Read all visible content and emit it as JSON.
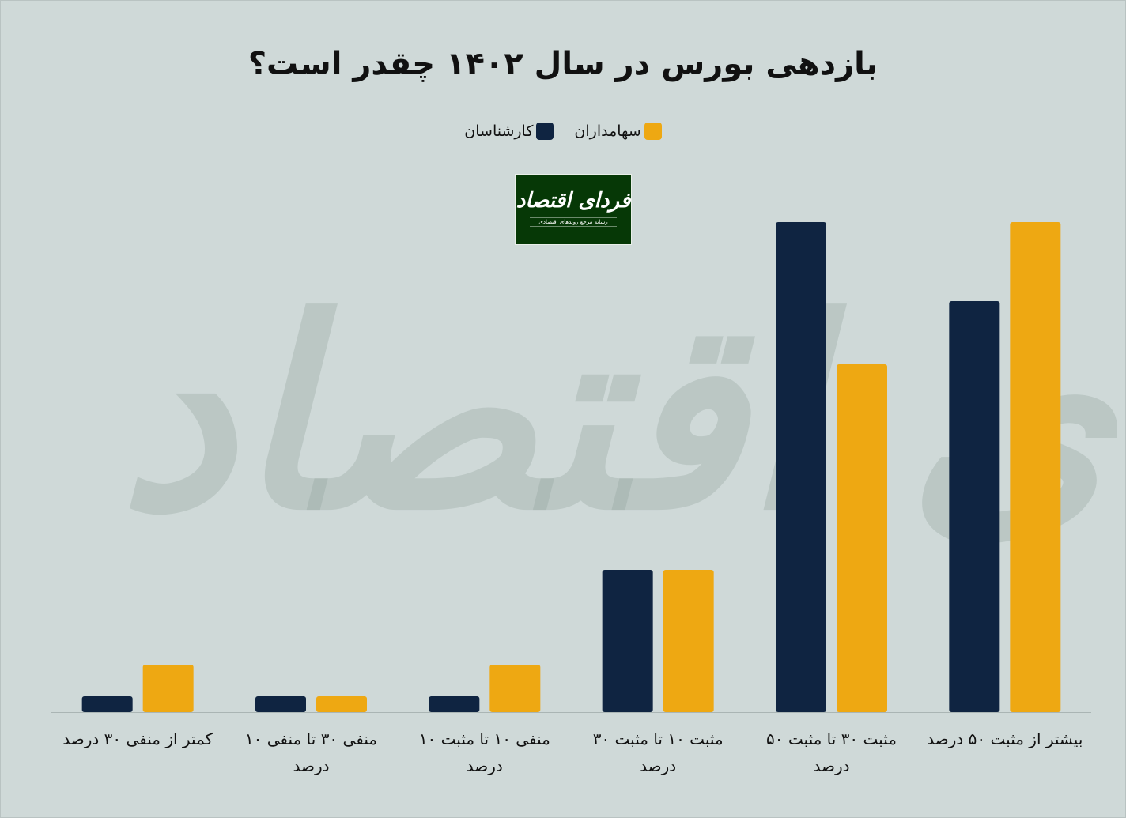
{
  "title": "بازدهی بورس در سال ۱۴۰۲ چقدر است؟",
  "logo": {
    "name": "فردای اقتصاد",
    "tagline": "رسانه مرجع روندهای اقتصادی"
  },
  "colors": {
    "background": "#cfd9d8",
    "experts": "#0f2441",
    "shareholders": "#eea812"
  },
  "chart_data": {
    "type": "bar",
    "title": "بازدهی بورس در سال ۱۴۰۲ چقدر است؟",
    "categories": [
      "کمتر از منفی ۳۰ درصد",
      "منفی ۳۰ تا منفی ۱۰ درصد",
      "منفی ۱۰ تا مثبت ۱۰ درصد",
      "مثبت ۱۰ تا مثبت ۳۰ درصد",
      "مثبت ۳۰ تا مثبت ۵۰ درصد",
      "بیشتر از مثبت ۵۰ درصد"
    ],
    "series": [
      {
        "name": "کارشناسان",
        "color": "#0f2441",
        "values": [
          1,
          1,
          1,
          9,
          31,
          26
        ]
      },
      {
        "name": "سهامداران",
        "color": "#eea812",
        "values": [
          3,
          1,
          3,
          9,
          22,
          31
        ]
      }
    ],
    "ylim": [
      0,
      31
    ],
    "y_axis_visible": false,
    "grid": false,
    "legend_position": "top-center"
  }
}
